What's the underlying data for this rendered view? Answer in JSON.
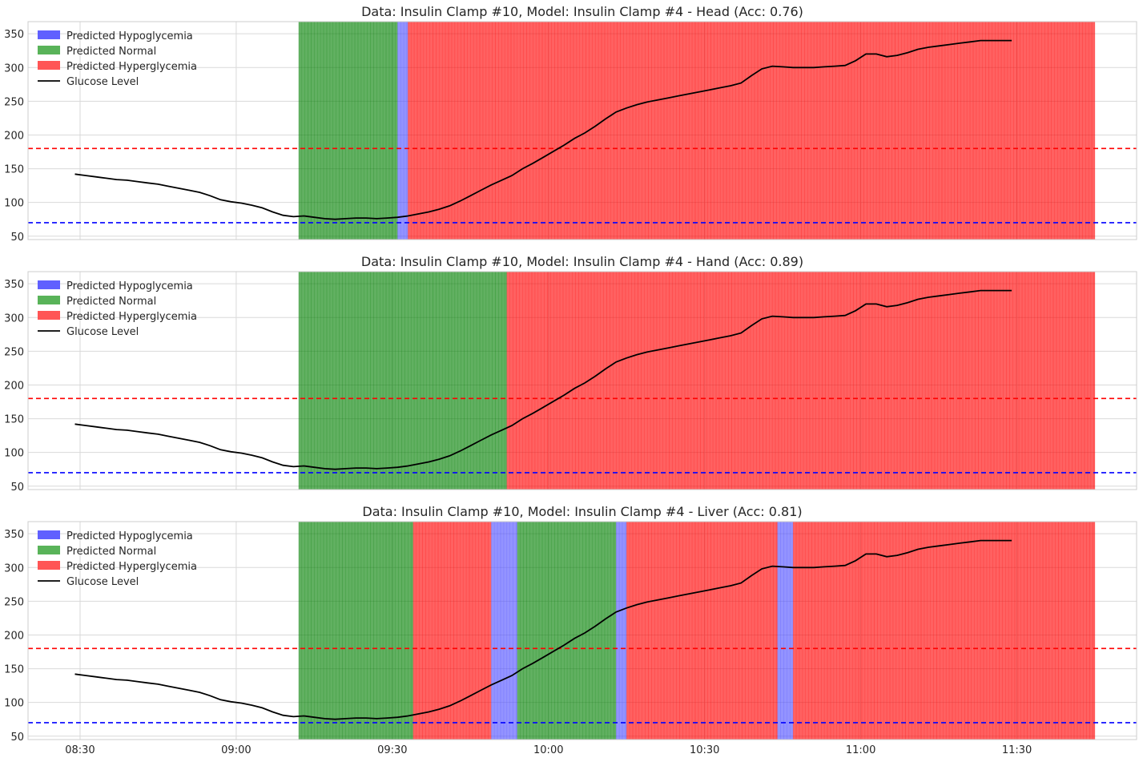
{
  "chart_data": [
    {
      "type": "line",
      "title": "Data: Insulin Clamp #10, Model: Insulin Clamp #4 - Head (Acc: 0.76)",
      "xlabel": "",
      "ylabel": "",
      "x_unit": "time of day (HH:MM)",
      "xlim": [
        "08:20",
        "11:53"
      ],
      "ylim": [
        45,
        368
      ],
      "yticks": [
        50,
        100,
        150,
        200,
        250,
        300,
        350
      ],
      "xticks": [
        "08:30",
        "09:00",
        "09:30",
        "10:00",
        "10:30",
        "11:00",
        "11:30"
      ],
      "show_xtick_labels": false,
      "grid": true,
      "legend_position": "top-left",
      "legend": [
        "Predicted Hypoglycemia",
        "Predicted Normal",
        "Predicted Hyperglycemia",
        "Glucose Level"
      ],
      "thresholds": [
        {
          "name": "hyperglycemia threshold",
          "value": 180,
          "color": "#ff0000"
        },
        {
          "name": "hypoglycemia threshold",
          "value": 70,
          "color": "#0000ff"
        }
      ],
      "series": [
        {
          "values_ref": "glucose"
        }
      ],
      "prediction_segments": [
        {
          "start": "09:12",
          "end": "09:31",
          "class": "normal"
        },
        {
          "start": "09:31",
          "end": "09:33",
          "class": "hypo"
        },
        {
          "start": "09:33",
          "end": "11:45",
          "class": "hyper"
        }
      ]
    },
    {
      "type": "line",
      "title": "Data: Insulin Clamp #10, Model: Insulin Clamp #4 - Hand (Acc: 0.89)",
      "xlabel": "",
      "ylabel": "",
      "x_unit": "time of day (HH:MM)",
      "xlim": [
        "08:20",
        "11:53"
      ],
      "ylim": [
        45,
        368
      ],
      "yticks": [
        50,
        100,
        150,
        200,
        250,
        300,
        350
      ],
      "xticks": [
        "08:30",
        "09:00",
        "09:30",
        "10:00",
        "10:30",
        "11:00",
        "11:30"
      ],
      "show_xtick_labels": false,
      "grid": true,
      "legend_position": "top-left",
      "legend": [
        "Predicted Hypoglycemia",
        "Predicted Normal",
        "Predicted Hyperglycemia",
        "Glucose Level"
      ],
      "thresholds": [
        {
          "name": "hyperglycemia threshold",
          "value": 180,
          "color": "#ff0000"
        },
        {
          "name": "hypoglycemia threshold",
          "value": 70,
          "color": "#0000ff"
        }
      ],
      "series": [
        {
          "values_ref": "glucose"
        }
      ],
      "prediction_segments": [
        {
          "start": "09:12",
          "end": "09:52",
          "class": "normal"
        },
        {
          "start": "09:52",
          "end": "11:45",
          "class": "hyper"
        }
      ]
    },
    {
      "type": "line",
      "title": "Data: Insulin Clamp #10, Model: Insulin Clamp #4 - Liver (Acc: 0.81)",
      "xlabel": "",
      "ylabel": "",
      "x_unit": "time of day (HH:MM)",
      "xlim": [
        "08:20",
        "11:53"
      ],
      "ylim": [
        45,
        368
      ],
      "yticks": [
        50,
        100,
        150,
        200,
        250,
        300,
        350
      ],
      "xticks": [
        "08:30",
        "09:00",
        "09:30",
        "10:00",
        "10:30",
        "11:00",
        "11:30"
      ],
      "show_xtick_labels": true,
      "grid": true,
      "legend_position": "top-left",
      "legend": [
        "Predicted Hypoglycemia",
        "Predicted Normal",
        "Predicted Hyperglycemia",
        "Glucose Level"
      ],
      "thresholds": [
        {
          "name": "hyperglycemia threshold",
          "value": 180,
          "color": "#ff0000"
        },
        {
          "name": "hypoglycemia threshold",
          "value": 70,
          "color": "#0000ff"
        }
      ],
      "series": [
        {
          "values_ref": "glucose"
        }
      ],
      "prediction_segments": [
        {
          "start": "09:12",
          "end": "09:34",
          "class": "normal"
        },
        {
          "start": "09:34",
          "end": "09:49",
          "class": "hyper"
        },
        {
          "start": "09:49",
          "end": "09:54",
          "class": "hypo"
        },
        {
          "start": "09:54",
          "end": "10:13",
          "class": "normal"
        },
        {
          "start": "10:13",
          "end": "10:15",
          "class": "hypo"
        },
        {
          "start": "10:15",
          "end": "10:44",
          "class": "hyper"
        },
        {
          "start": "10:44",
          "end": "10:47",
          "class": "hypo"
        },
        {
          "start": "10:47",
          "end": "11:45",
          "class": "hyper"
        }
      ]
    }
  ],
  "glucose": {
    "x": [
      "08:29",
      "08:31",
      "08:33",
      "08:35",
      "08:37",
      "08:39",
      "08:41",
      "08:43",
      "08:45",
      "08:47",
      "08:49",
      "08:51",
      "08:53",
      "08:55",
      "08:57",
      "08:59",
      "09:01",
      "09:03",
      "09:05",
      "09:07",
      "09:09",
      "09:11",
      "09:13",
      "09:15",
      "09:17",
      "09:19",
      "09:21",
      "09:23",
      "09:25",
      "09:27",
      "09:29",
      "09:31",
      "09:33",
      "09:35",
      "09:37",
      "09:39",
      "09:41",
      "09:43",
      "09:45",
      "09:47",
      "09:49",
      "09:51",
      "09:53",
      "09:55",
      "09:57",
      "09:59",
      "10:01",
      "10:03",
      "10:05",
      "10:07",
      "10:09",
      "10:11",
      "10:13",
      "10:15",
      "10:17",
      "10:19",
      "10:21",
      "10:23",
      "10:25",
      "10:27",
      "10:29",
      "10:31",
      "10:33",
      "10:35",
      "10:37",
      "10:39",
      "10:41",
      "10:43",
      "10:45",
      "10:47",
      "10:49",
      "10:51",
      "10:53",
      "10:55",
      "10:57",
      "10:59",
      "11:01",
      "11:03",
      "11:05",
      "11:07",
      "11:09",
      "11:11",
      "11:13",
      "11:15",
      "11:17",
      "11:19",
      "11:21",
      "11:23",
      "11:25",
      "11:27",
      "11:29"
    ],
    "y": [
      142,
      140,
      138,
      136,
      134,
      133,
      131,
      129,
      127,
      124,
      121,
      118,
      115,
      110,
      104,
      101,
      99,
      96,
      92,
      86,
      81,
      79,
      80,
      78,
      76,
      75,
      76,
      77,
      77,
      76,
      77,
      78,
      80,
      83,
      86,
      90,
      95,
      102,
      110,
      118,
      126,
      133,
      140,
      150,
      158,
      167,
      176,
      185,
      195,
      203,
      213,
      224,
      234,
      240,
      245,
      249,
      252,
      255,
      258,
      261,
      264,
      267,
      270,
      273,
      277,
      288,
      298,
      302,
      301,
      300,
      300,
      300,
      301,
      302,
      303,
      310,
      320,
      320,
      316,
      318,
      322,
      327,
      330,
      332,
      334,
      336,
      338,
      340,
      340,
      340,
      340
    ]
  },
  "legend_colors": {
    "hypo": "#6060ff",
    "normal": "#59b359",
    "hyper": "#ff5555"
  },
  "band_colors": {
    "hypo": "#5050ff",
    "normal": "#008000",
    "hyper": "#ff0000"
  }
}
